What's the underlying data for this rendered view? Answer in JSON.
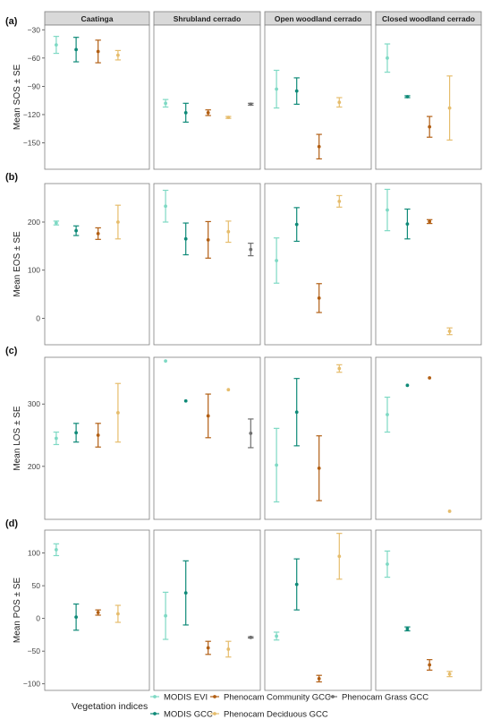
{
  "colors": {
    "modis_evi": "#7ed9c4",
    "modis_gcc": "#0f8a78",
    "community_gcc": "#b25f14",
    "deciduous_gcc": "#e6bd6d",
    "grass_gcc": "#6f6f6f",
    "strip_bg": "#d9d9d9",
    "panel_border": "#7f7f7f"
  },
  "legend": {
    "title": "Vegetation indices",
    "items": [
      {
        "label": "MODIS EVI",
        "color_key": "modis_evi"
      },
      {
        "label": "Phenocam Community GCC",
        "color_key": "community_gcc"
      },
      {
        "label": "Phenocam Grass GCC",
        "color_key": "grass_gcc"
      },
      {
        "label": "MODIS GCC",
        "color_key": "modis_gcc"
      },
      {
        "label": "Phenocam Deciduous GCC",
        "color_key": "deciduous_gcc"
      }
    ]
  },
  "chart_data": {
    "type": "scatter",
    "facets": [
      "Caatinga",
      "Shrubland cerrado",
      "Open woodland cerrado",
      "Closed woodland cerrado"
    ],
    "series_order": [
      "MODIS EVI",
      "MODIS GCC",
      "Phenocam Community GCC",
      "Phenocam Deciduous GCC",
      "Phenocam Grass GCC"
    ],
    "rows": [
      {
        "tag": "(a)",
        "ylabel": "Mean SOS ± SE",
        "ylim": [
          -178,
          -25
        ],
        "yticks": [
          -150,
          -120,
          -90,
          -60,
          -30
        ],
        "facets": [
          [
            [
              -46,
              9
            ],
            [
              -51,
              13
            ],
            [
              -53,
              12
            ],
            [
              -57,
              5
            ],
            null
          ],
          [
            [
              -108,
              4
            ],
            [
              -118,
              10
            ],
            [
              -118,
              3
            ],
            [
              -123,
              1
            ],
            [
              -109,
              1
            ]
          ],
          [
            [
              -93,
              20
            ],
            [
              -95,
              14
            ],
            [
              -154,
              13
            ],
            [
              -107,
              5
            ],
            null
          ],
          [
            [
              -60,
              15
            ],
            [
              -101,
              1
            ],
            [
              -133,
              11
            ],
            [
              -113,
              34
            ],
            null
          ]
        ]
      },
      {
        "tag": "(b)",
        "ylabel": "Mean EOS ± SE",
        "ylim": [
          -55,
          280
        ],
        "yticks": [
          0,
          100,
          200
        ],
        "facets": [
          [
            [
              198,
              4
            ],
            [
              182,
              10
            ],
            [
              176,
              12
            ],
            [
              200,
              35
            ],
            null
          ],
          [
            [
              233,
              33
            ],
            [
              165,
              33
            ],
            [
              163,
              38
            ],
            [
              180,
              22
            ],
            [
              143,
              13
            ]
          ],
          [
            [
              120,
              47
            ],
            [
              195,
              35
            ],
            [
              42,
              30
            ],
            [
              243,
              12
            ],
            null
          ],
          [
            [
              225,
              43
            ],
            [
              196,
              31
            ],
            [
              201,
              4
            ],
            [
              -27,
              7
            ],
            null
          ]
        ]
      },
      {
        "tag": "(c)",
        "ylabel": "Mean LOS ± SE",
        "ylim": [
          115,
          375
        ],
        "yticks": [
          200,
          300
        ],
        "facets": [
          [
            [
              245,
              10
            ],
            [
              254,
              15
            ],
            [
              250,
              19
            ],
            [
              286,
              47
            ],
            null
          ],
          [
            [
              369,
              0
            ],
            [
              305,
              0
            ],
            [
              281,
              35
            ],
            [
              323,
              0
            ],
            [
              253,
              23
            ]
          ],
          [
            [
              202,
              59
            ],
            [
              287,
              54
            ],
            [
              197,
              52
            ],
            [
              357,
              6
            ],
            null
          ],
          [
            [
              283,
              28
            ],
            [
              330,
              0
            ],
            [
              342,
              0
            ],
            [
              128,
              0
            ],
            null
          ]
        ]
      },
      {
        "tag": "(d)",
        "ylabel": "Mean POS ± SE",
        "ylim": [
          -110,
          135
        ],
        "yticks": [
          -100,
          -50,
          0,
          50,
          100
        ],
        "facets": [
          [
            [
              105,
              9
            ],
            [
              2,
              20
            ],
            [
              9,
              4
            ],
            [
              7,
              13
            ],
            null
          ],
          [
            [
              4,
              36
            ],
            [
              39,
              49
            ],
            [
              -45,
              10
            ],
            [
              -47,
              12
            ],
            [
              -29,
              1
            ]
          ],
          [
            [
              -27,
              6
            ],
            [
              52,
              39
            ],
            [
              -92,
              5
            ],
            [
              95,
              35
            ],
            null
          ],
          [
            [
              83,
              20
            ],
            [
              -16,
              3
            ],
            [
              -71,
              8
            ],
            [
              -85,
              4
            ],
            null
          ]
        ]
      }
    ]
  }
}
